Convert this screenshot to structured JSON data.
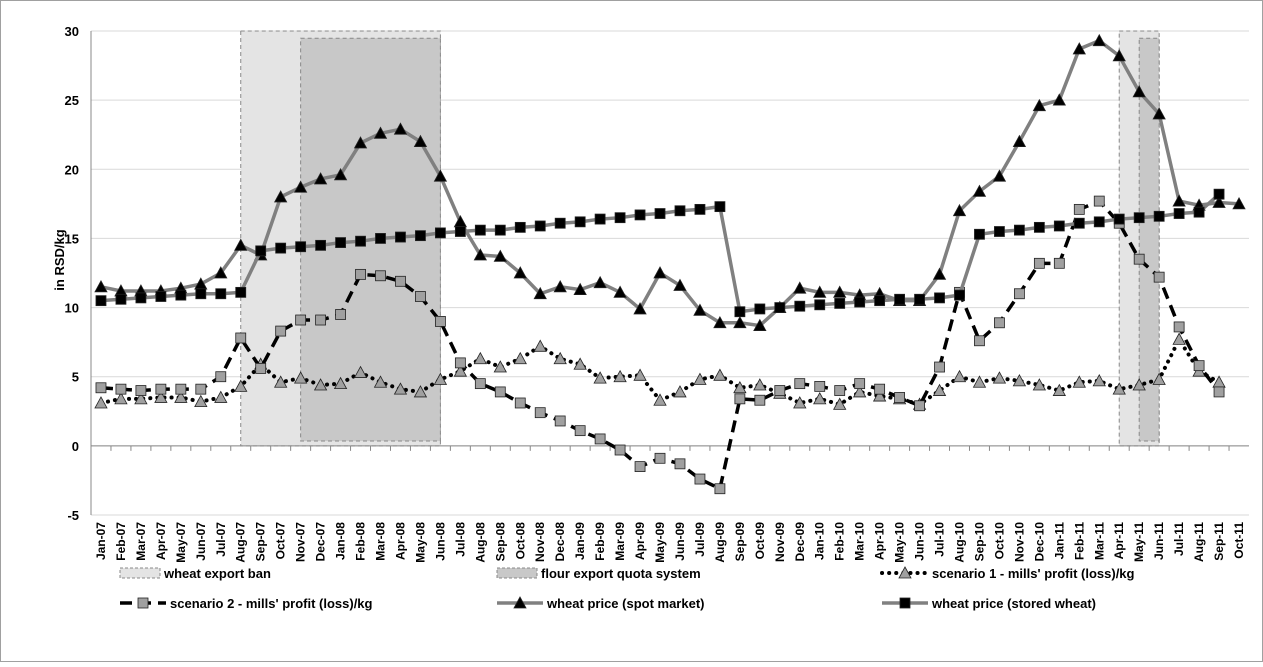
{
  "chart_data": {
    "type": "line",
    "y_label": "in RSD/kg",
    "categories": [
      "Jan-07",
      "Feb-07",
      "Mar-07",
      "Apr-07",
      "May-07",
      "Jun-07",
      "Jul-07",
      "Aug-07",
      "Sep-07",
      "Oct-07",
      "Nov-07",
      "Dec-07",
      "Jan-08",
      "Feb-08",
      "Mar-08",
      "Apr-08",
      "May-08",
      "Jun-08",
      "Jul-08",
      "Aug-08",
      "Sep-08",
      "Oct-08",
      "Nov-08",
      "Dec-08",
      "Jan-09",
      "Feb-09",
      "Mar-09",
      "Apr-09",
      "May-09",
      "Jun-09",
      "Jul-09",
      "Aug-09",
      "Sep-09",
      "Oct-09",
      "Nov-09",
      "Dec-09",
      "Jan-10",
      "Feb-10",
      "Mar-10",
      "Apr-10",
      "May-10",
      "Jun-10",
      "Jul-10",
      "Aug-10",
      "Sep-10",
      "Oct-10",
      "Nov-10",
      "Dec-10",
      "Jan-11",
      "Feb-11",
      "Mar-11",
      "Apr-11",
      "May-11",
      "Jun-11",
      "Jul-11",
      "Aug-11",
      "Sep-11",
      "Oct-11"
    ],
    "ylim": [
      -5,
      30
    ],
    "yticks": [
      -5,
      0,
      5,
      10,
      15,
      20,
      25,
      30
    ],
    "grid": true,
    "regions": [
      {
        "name": "wheat export ban",
        "color": "#e4e4e4",
        "spans": [
          [
            "Aug-07",
            "Jun-08"
          ],
          [
            "Apr-11",
            "Jun-11"
          ]
        ]
      },
      {
        "name": "flour export quota system",
        "color": "#c8c8c8",
        "spans": [
          [
            "Nov-07",
            "Jun-08"
          ],
          [
            "May-11",
            "Jun-11"
          ]
        ]
      }
    ],
    "series": [
      {
        "name": "scenario 1 - mills' profit (loss)/kg",
        "color": "#000000",
        "dash": "dotted",
        "marker": "triangle",
        "marker_color": "#a0a0a0",
        "values": [
          3.1,
          3.4,
          3.4,
          3.5,
          3.5,
          3.2,
          3.5,
          4.3,
          5.9,
          4.6,
          4.9,
          4.4,
          4.5,
          5.3,
          4.6,
          4.1,
          3.9,
          4.8,
          5.4,
          6.3,
          5.7,
          6.3,
          7.2,
          6.3,
          5.9,
          4.9,
          5,
          5.1,
          3.3,
          3.9,
          4.8,
          5.1,
          4.2,
          4.4,
          3.8,
          3.1,
          3.4,
          3,
          3.9,
          3.6,
          3.4,
          3,
          4,
          5,
          4.6,
          4.9,
          4.7,
          4.4,
          4,
          4.6,
          4.7,
          4.1,
          4.4,
          4.8,
          7.7,
          5.4,
          4.6,
          null
        ]
      },
      {
        "name": "scenario 2 - mills' profit (loss)/kg",
        "color": "#000000",
        "dash": "dashed",
        "marker": "square",
        "marker_color": "#a0a0a0",
        "values": [
          4.2,
          4.1,
          4,
          4.1,
          4.1,
          4.1,
          5,
          7.8,
          5.6,
          8.3,
          9.1,
          9.1,
          9.5,
          12.4,
          12.3,
          11.9,
          10.8,
          9,
          6,
          4.5,
          3.9,
          3.1,
          2.4,
          1.8,
          1.1,
          0.5,
          -0.3,
          -1.5,
          -0.9,
          -1.3,
          -2.4,
          -3.1,
          3.4,
          3.3,
          4,
          4.5,
          4.3,
          4,
          4.5,
          4.1,
          3.5,
          2.9,
          5.7,
          11.1,
          7.6,
          8.9,
          11,
          13.2,
          13.2,
          17.1,
          17.7,
          16.1,
          13.5,
          12.2,
          8.6,
          5.8,
          3.9,
          null
        ]
      },
      {
        "name": "wheat price (spot market)",
        "color": "#808080",
        "dash": "solid",
        "marker": "triangle",
        "marker_color": "#000000",
        "values": [
          11.5,
          11.2,
          11.2,
          11.2,
          11.4,
          11.7,
          12.5,
          14.5,
          13.8,
          18,
          18.7,
          19.3,
          19.6,
          21.9,
          22.6,
          22.9,
          22,
          19.5,
          16.2,
          13.8,
          13.7,
          12.5,
          11,
          11.5,
          11.3,
          11.8,
          11.1,
          9.9,
          12.5,
          11.6,
          9.8,
          8.9,
          8.9,
          8.7,
          10,
          11.4,
          11.1,
          11.1,
          10.9,
          11,
          10.5,
          10.5,
          12.4,
          17,
          18.4,
          19.5,
          22,
          24.6,
          25,
          28.7,
          29.3,
          28.2,
          25.6,
          24,
          17.7,
          17.4,
          17.6,
          17.5
        ]
      },
      {
        "name": "wheat price (stored wheat)",
        "color": "#808080",
        "dash": "solid",
        "marker": "square",
        "marker_color": "#000000",
        "values": [
          10.5,
          10.6,
          10.7,
          10.8,
          10.9,
          11,
          11,
          11.1,
          14.1,
          14.3,
          14.4,
          14.5,
          14.7,
          14.8,
          15,
          15.1,
          15.2,
          15.4,
          15.5,
          15.6,
          15.6,
          15.8,
          15.9,
          16.1,
          16.2,
          16.4,
          16.5,
          16.7,
          16.8,
          17,
          17.1,
          17.3,
          9.7,
          9.9,
          10,
          10.1,
          10.2,
          10.3,
          10.4,
          10.5,
          10.6,
          10.6,
          10.7,
          10.9,
          15.3,
          15.5,
          15.6,
          15.8,
          15.9,
          16.1,
          16.2,
          16.4,
          16.5,
          16.6,
          16.8,
          16.9,
          18.2,
          null
        ]
      }
    ]
  }
}
